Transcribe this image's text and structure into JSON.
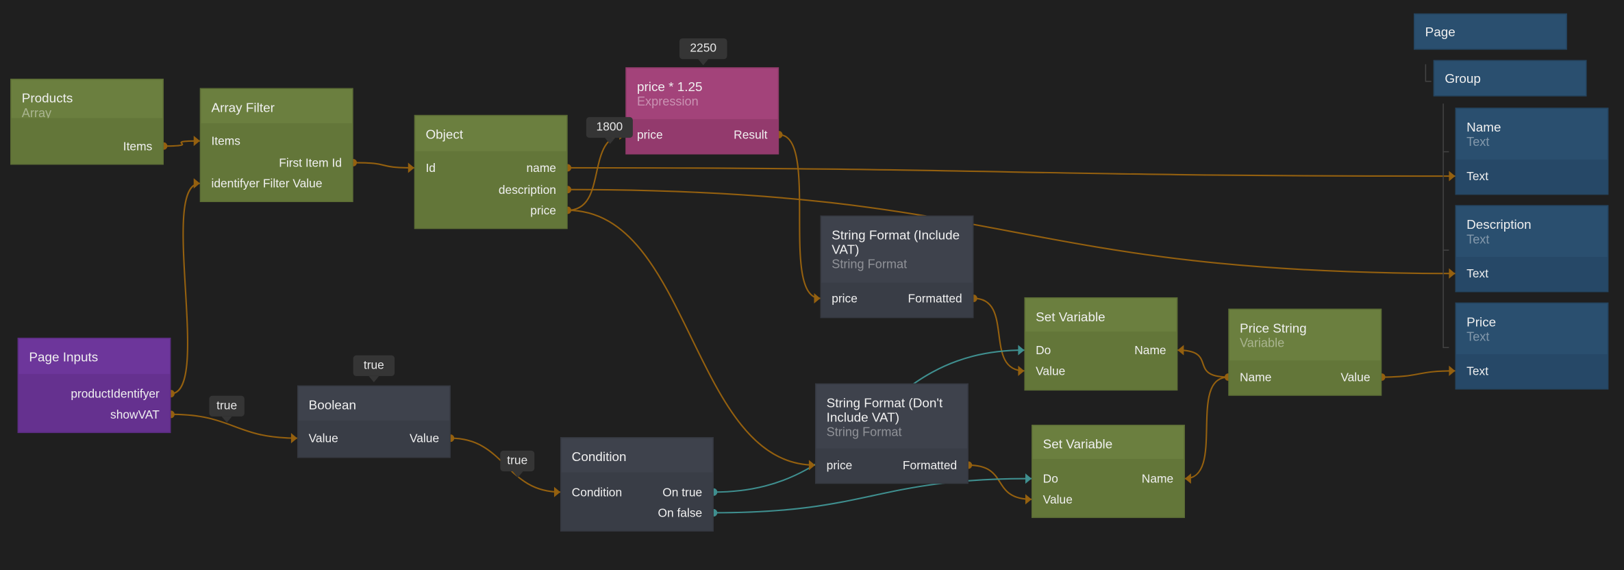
{
  "colors": {
    "value_wire": "#94600f",
    "signal_wire": "#3f8f8f",
    "background": "#1f1f1f"
  },
  "nodes": [
    {
      "id": "products",
      "title": "Products",
      "subtitle": "Array",
      "kind": "green",
      "ports": [
        {
          "label": "Items",
          "side": "r",
          "io": "out"
        }
      ]
    },
    {
      "id": "array_filter",
      "title": "Array Filter",
      "subtitle": "",
      "kind": "green",
      "ports": [
        {
          "label": "Items",
          "side": "l",
          "io": "in"
        },
        {
          "label": "First Item Id",
          "side": "r",
          "io": "out"
        },
        {
          "label": "identifyer Filter Value",
          "side": "l",
          "io": "in"
        }
      ]
    },
    {
      "id": "object",
      "title": "Object",
      "subtitle": "",
      "kind": "green",
      "ports": [
        {
          "label": "Id",
          "side": "l",
          "io": "in"
        },
        {
          "label": "name",
          "side": "r",
          "io": "out"
        },
        {
          "label": "description",
          "side": "r",
          "io": "out"
        },
        {
          "label": "price",
          "side": "r",
          "io": "out"
        }
      ]
    },
    {
      "id": "expression",
      "title": "price * 1.25",
      "subtitle": "Expression",
      "kind": "pink",
      "ports": [
        {
          "label": "price",
          "side": "l",
          "io": "in"
        },
        {
          "label": "Result",
          "side": "r",
          "io": "out"
        }
      ]
    },
    {
      "id": "sf_include",
      "title": "String Format (Include VAT)",
      "subtitle": "String Format",
      "kind": "gray",
      "ports": [
        {
          "label": "price",
          "side": "l",
          "io": "in"
        },
        {
          "label": "Formatted",
          "side": "r",
          "io": "out"
        }
      ]
    },
    {
      "id": "page_inputs",
      "title": "Page Inputs",
      "subtitle": "",
      "kind": "purple",
      "ports": [
        {
          "label": "productIdentifyer",
          "side": "r",
          "io": "out"
        },
        {
          "label": "showVAT",
          "side": "r",
          "io": "out"
        }
      ]
    },
    {
      "id": "boolean",
      "title": "Boolean",
      "subtitle": "",
      "kind": "gray",
      "ports": [
        {
          "label": "Value",
          "side": "l",
          "io": "in"
        },
        {
          "label": "Value",
          "side": "r",
          "io": "out"
        }
      ]
    },
    {
      "id": "condition",
      "title": "Condition",
      "subtitle": "",
      "kind": "gray",
      "ports": [
        {
          "label": "Condition",
          "side": "l",
          "io": "in"
        },
        {
          "label": "On true",
          "side": "r",
          "io": "out",
          "signal": true
        },
        {
          "label": "On false",
          "side": "r",
          "io": "out",
          "signal": true
        }
      ]
    },
    {
      "id": "sf_exclude",
      "title": "String Format (Don't Include VAT)",
      "subtitle": "String Format",
      "kind": "gray",
      "ports": [
        {
          "label": "price",
          "side": "l",
          "io": "in"
        },
        {
          "label": "Formatted",
          "side": "r",
          "io": "out"
        }
      ]
    },
    {
      "id": "set_var_1",
      "title": "Set Variable",
      "subtitle": "",
      "kind": "green",
      "ports": [
        {
          "label": "Do",
          "side": "l",
          "io": "in",
          "signal": true
        },
        {
          "label": "Name",
          "side": "r",
          "io": "in"
        },
        {
          "label": "Value",
          "side": "l",
          "io": "in"
        }
      ]
    },
    {
      "id": "set_var_2",
      "title": "Set Variable",
      "subtitle": "",
      "kind": "green",
      "ports": [
        {
          "label": "Do",
          "side": "l",
          "io": "in",
          "signal": true
        },
        {
          "label": "Name",
          "side": "r",
          "io": "in"
        },
        {
          "label": "Value",
          "side": "l",
          "io": "in"
        }
      ]
    },
    {
      "id": "price_string",
      "title": "Price String",
      "subtitle": "Variable",
      "kind": "green",
      "ports": [
        {
          "label": "Name",
          "side": "l",
          "io": "out"
        },
        {
          "label": "Value",
          "side": "r",
          "io": "out"
        }
      ]
    },
    {
      "id": "page",
      "title": "Page",
      "subtitle": "",
      "kind": "blue",
      "ports": []
    },
    {
      "id": "group",
      "title": "Group",
      "subtitle": "",
      "kind": "blue",
      "ports": []
    },
    {
      "id": "name_text",
      "title": "Name",
      "subtitle": "Text",
      "kind": "blue",
      "ports": [
        {
          "label": "Text",
          "side": "l",
          "io": "in"
        }
      ]
    },
    {
      "id": "description_text",
      "title": "Description",
      "subtitle": "Text",
      "kind": "blue",
      "ports": [
        {
          "label": "Text",
          "side": "l",
          "io": "in"
        }
      ]
    },
    {
      "id": "price_text",
      "title": "Price",
      "subtitle": "Text",
      "kind": "blue",
      "ports": [
        {
          "label": "Text",
          "side": "l",
          "io": "in"
        }
      ]
    }
  ],
  "tooltips": [
    {
      "id": "expr_result",
      "text": "2250"
    },
    {
      "id": "object_price",
      "text": "1800"
    },
    {
      "id": "show_vat",
      "text": "true"
    },
    {
      "id": "boolean_value",
      "text": "true"
    },
    {
      "id": "condition_in",
      "text": "true"
    }
  ],
  "connections": [
    {
      "from": "products.0",
      "to": "array_filter.0"
    },
    {
      "from": "array_filter.1",
      "to": "object.0"
    },
    {
      "from": "page_inputs.0",
      "to": "array_filter.2"
    },
    {
      "from": "object.1",
      "to": "name_text.0"
    },
    {
      "from": "object.2",
      "to": "description_text.0"
    },
    {
      "from": "object.3",
      "to": "expression.0"
    },
    {
      "from": "object.3",
      "to": "sf_exclude.0"
    },
    {
      "from": "expression.1",
      "to": "sf_include.0"
    },
    {
      "from": "sf_include.1",
      "to": "set_var_1.2"
    },
    {
      "from": "sf_exclude.1",
      "to": "set_var_2.2"
    },
    {
      "from": "page_inputs.1",
      "to": "boolean.0"
    },
    {
      "from": "boolean.1",
      "to": "condition.0"
    },
    {
      "from": "condition.1",
      "to": "set_var_1.0",
      "signal": true
    },
    {
      "from": "condition.2",
      "to": "set_var_2.0",
      "signal": true
    },
    {
      "from": "price_string.0",
      "to": "set_var_1.1"
    },
    {
      "from": "price_string.0",
      "to": "set_var_2.1"
    },
    {
      "from": "price_string.1",
      "to": "price_text.0"
    }
  ]
}
